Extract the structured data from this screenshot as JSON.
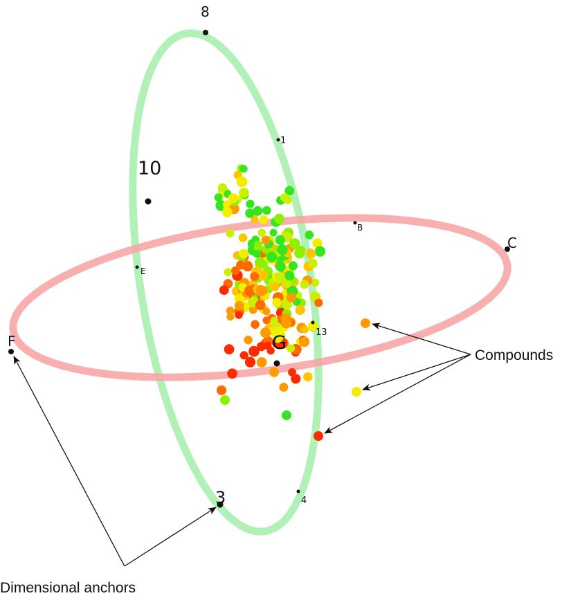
{
  "colors": {
    "green_ring": "#a8f0b0",
    "red_ring": "#f6a6a6",
    "anchor_dot": "#111111",
    "compound_palette": [
      "#ff2a00",
      "#ff6a00",
      "#ff9a00",
      "#ffc400",
      "#f2ee00",
      "#c8f000",
      "#8ef000",
      "#35e61e"
    ]
  },
  "anchors": {
    "a8": "8",
    "a1": "1",
    "a10": "10",
    "aB": "B",
    "aC": "C",
    "aE": "E",
    "aF": "F",
    "a13": "13",
    "aG": "G",
    "a3": "3",
    "a4": "4"
  },
  "callouts": {
    "compounds": "Compounds",
    "dimensional_anchors": "Dimensional anchors"
  },
  "compound_count": 230
}
